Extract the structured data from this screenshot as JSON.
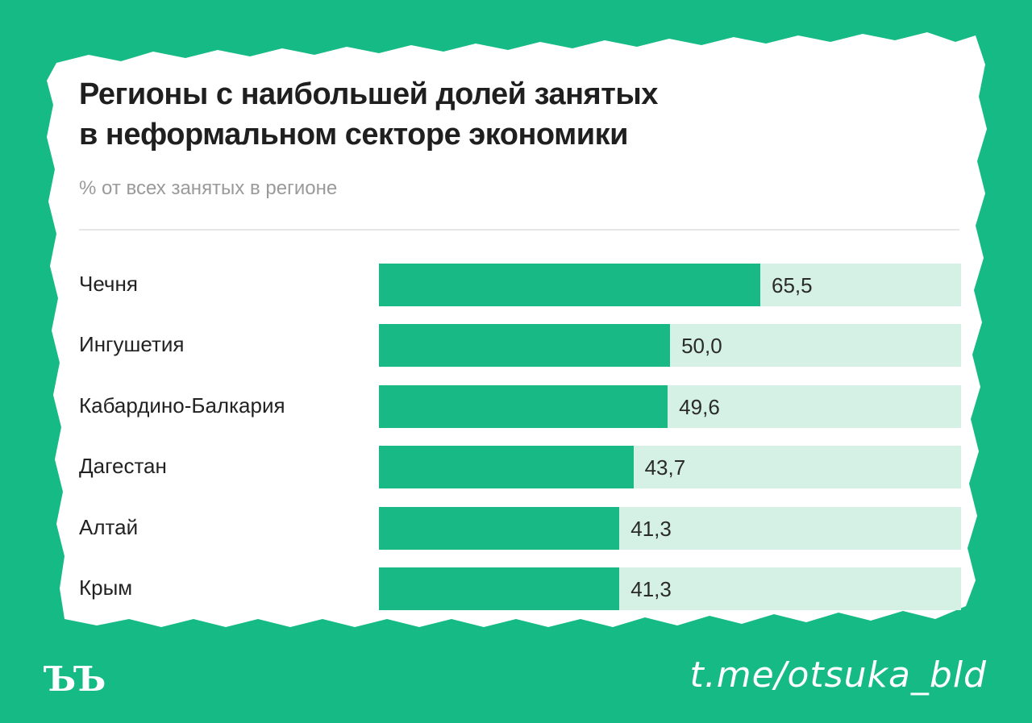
{
  "colors": {
    "frame": "#16ba85",
    "card": "#ffffff",
    "bar": "#18b984",
    "track": "#d5f1e6"
  },
  "footer": {
    "logo": "ЪЪ",
    "handle": "t.me/otsuka_bld"
  },
  "chart_data": {
    "type": "bar",
    "orientation": "horizontal",
    "title_lines": [
      "Регионы с наибольшей долей занятых",
      "в неформальном секторе экономики"
    ],
    "subtitle": "% от всех занятых в регионе",
    "categories": [
      "Чечня",
      "Ингушетия",
      "Кабардино-Балкария",
      "Дагестан",
      "Алтай",
      "Крым"
    ],
    "values": [
      65.5,
      50.0,
      49.6,
      43.7,
      41.3,
      41.3
    ],
    "value_labels": [
      "65,5",
      "50,0",
      "49,6",
      "43,7",
      "41,3",
      "41,3"
    ],
    "xlim": [
      0,
      100
    ],
    "grid": false
  }
}
